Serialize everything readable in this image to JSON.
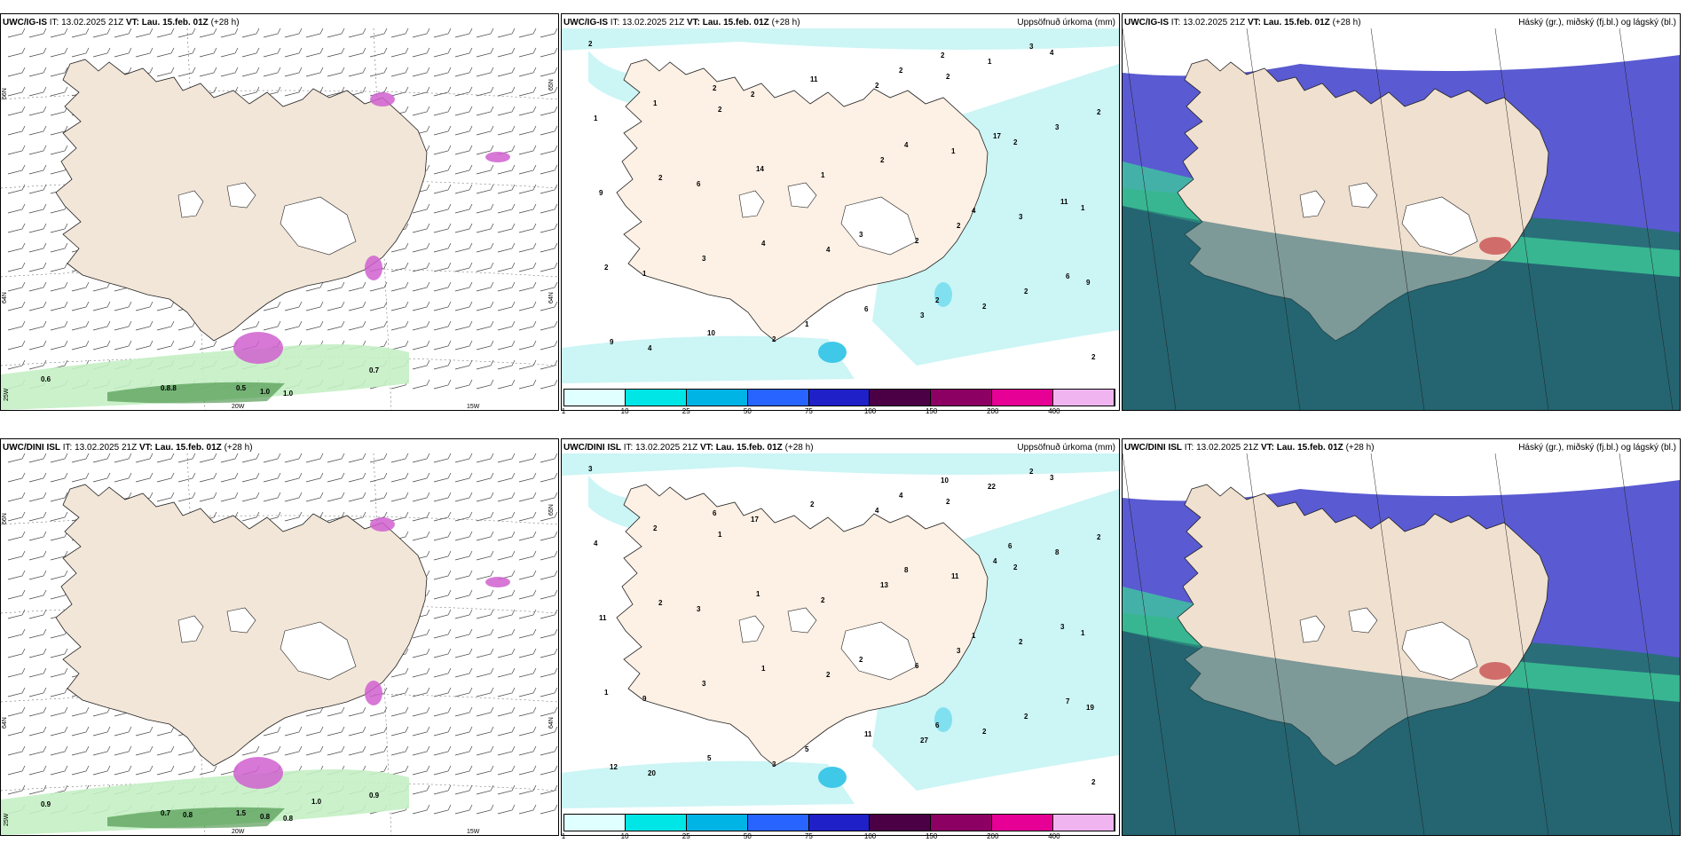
{
  "panels": [
    {
      "id": "p1",
      "model": "UWC/IG-IS",
      "it_label": "IT:",
      "it": "13.02.2025 21Z",
      "vt_label": "VT:",
      "vt": "Lau. 15.feb. 01Z",
      "lead": "(+28 h)",
      "title_right": "",
      "labels": [
        "0.6",
        "0.8.8",
        "0.5",
        "1.0",
        "1.0",
        "0.7"
      ],
      "lat_labels": [
        "66N",
        "64N",
        "25W",
        "20W",
        "15W",
        "65N",
        "64N"
      ]
    },
    {
      "id": "p2",
      "model": "UWC/IG-IS",
      "it_label": "IT:",
      "it": "13.02.2025 21Z",
      "vt_label": "VT:",
      "vt": "Lau. 15.feb. 01Z",
      "lead": "(+28 h)",
      "title_right": "Uppsöfnuð úrkoma (mm)",
      "labels": [
        "2",
        "2",
        "2",
        "2",
        "1",
        "1",
        "2",
        "1",
        "2",
        "2",
        "4",
        "2",
        "1",
        "1",
        "6",
        "3",
        "4",
        "9",
        "3",
        "4",
        "1",
        "2",
        "3",
        "2",
        "9",
        "2",
        "3",
        "2",
        "1",
        "2",
        "2",
        "1",
        "17",
        "14",
        "11",
        "3",
        "2",
        "2",
        "10",
        "3",
        "11",
        "2",
        "4",
        "2",
        "4",
        "4",
        "6",
        "6",
        "9",
        "2",
        "2"
      ]
    },
    {
      "id": "p3",
      "model": "UWC/IG-IS",
      "it_label": "IT:",
      "it": "13.02.2025 21Z",
      "vt_label": "VT:",
      "vt": "Lau. 15.feb. 01Z",
      "lead": "(+28 h)",
      "title_right": "Háský (gr.), miðský (fj.bl.) og lágský (bl.)",
      "labels": []
    },
    {
      "id": "p4",
      "model": "UWC/DINI ISL",
      "it_label": "IT:",
      "it": "13.02.2025 21Z",
      "vt_label": "VT:",
      "vt": "Lau. 15.feb. 01Z",
      "lead": "(+28 h)",
      "title_right": "",
      "labels": [
        "0.9",
        "0.7",
        "1.5",
        "0.8",
        "0.8",
        "0.9",
        "1.0",
        "0.8"
      ],
      "lat_labels": [
        "66N",
        "64N",
        "25W",
        "20W",
        "15W",
        "65N",
        "64N"
      ]
    },
    {
      "id": "p5",
      "model": "UWC/DINI ISL",
      "it_label": "IT:",
      "it": "13.02.2025 21Z",
      "vt_label": "VT:",
      "vt": "Lau. 15.feb. 01Z",
      "lead": "(+28 h)",
      "title_right": "Uppsöfnuð úrkoma (mm)",
      "labels": [
        "3",
        "2",
        "1",
        "2",
        "2",
        "1",
        "6",
        "9",
        "2",
        "3",
        "3",
        "4",
        "4",
        "11",
        "3",
        "2",
        "2",
        "19",
        "27",
        "20",
        "22",
        "17",
        "8",
        "13",
        "11",
        "3",
        "3",
        "2",
        "5",
        "2",
        "4",
        "2",
        "4",
        "1",
        "3",
        "2",
        "1",
        "6",
        "5",
        "2",
        "2",
        "2",
        "8",
        "2",
        "1",
        "1",
        "7",
        "11",
        "12",
        "10",
        "6",
        "6"
      ]
    },
    {
      "id": "p6",
      "model": "UWC/DINI ISL",
      "it_label": "IT:",
      "it": "13.02.2025 21Z",
      "vt_label": "VT:",
      "vt": "Lau. 15.feb. 01Z",
      "lead": "(+28 h)",
      "title_right": "Háský (gr.), miðský (fj.bl.) og lágský (bl.)",
      "labels": []
    }
  ],
  "colorbar": {
    "ticks": [
      "1",
      "10",
      "25",
      "50",
      "75",
      "100",
      "150",
      "200",
      "400"
    ],
    "colors": [
      "#e0ffff",
      "#00e6e6",
      "#00b4e6",
      "#2864ff",
      "#2020c8",
      "#4b0046",
      "#8c0064",
      "#e60096",
      "#f0b4f0"
    ]
  },
  "colors": {
    "land": "#f2e6d8",
    "sea_wind": "#ffffff",
    "precip_light": "#ccf5f5",
    "cloud_high": "#3ecf9a",
    "cloud_mid": "#5a5ad2",
    "cloud_low": "#2a6e7a"
  }
}
